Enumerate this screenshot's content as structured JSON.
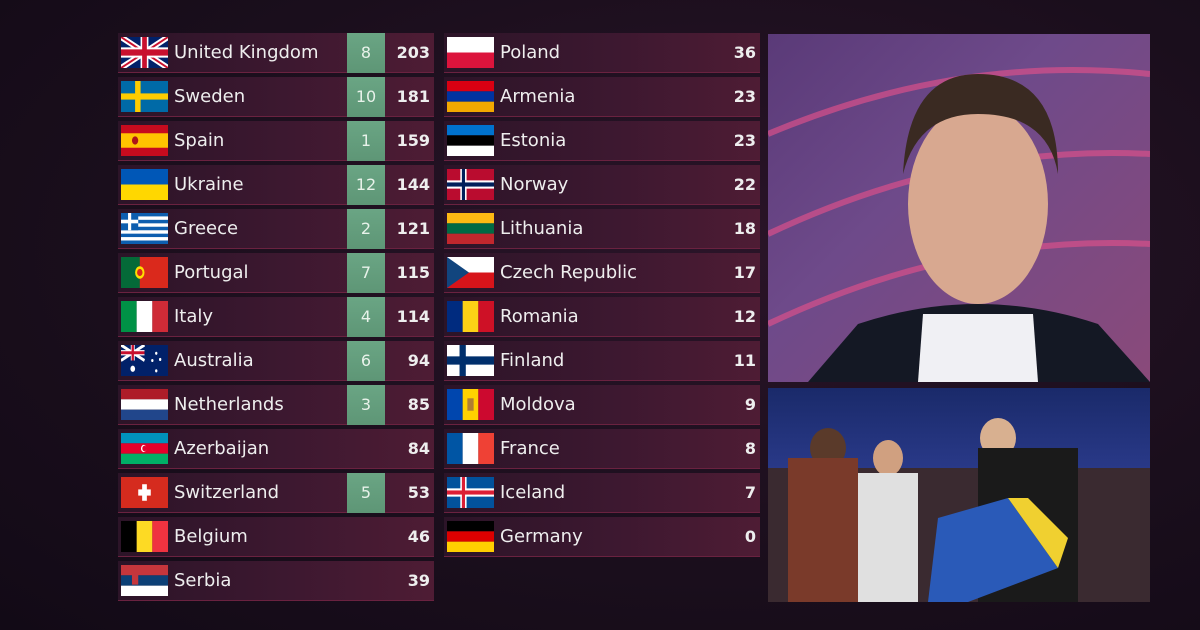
{
  "scoreboard": {
    "left": [
      {
        "country": "United Kingdom",
        "flag": "gb",
        "points": "8",
        "total": "203"
      },
      {
        "country": "Sweden",
        "flag": "se",
        "points": "10",
        "total": "181"
      },
      {
        "country": "Spain",
        "flag": "es",
        "points": "1",
        "total": "159"
      },
      {
        "country": "Ukraine",
        "flag": "ua",
        "points": "12",
        "total": "144"
      },
      {
        "country": "Greece",
        "flag": "gr",
        "points": "2",
        "total": "121"
      },
      {
        "country": "Portugal",
        "flag": "pt",
        "points": "7",
        "total": "115"
      },
      {
        "country": "Italy",
        "flag": "it",
        "points": "4",
        "total": "114"
      },
      {
        "country": "Australia",
        "flag": "au",
        "points": "6",
        "total": "94"
      },
      {
        "country": "Netherlands",
        "flag": "nl",
        "points": "3",
        "total": "85"
      },
      {
        "country": "Azerbaijan",
        "flag": "az",
        "points": null,
        "total": "84"
      },
      {
        "country": "Switzerland",
        "flag": "ch",
        "points": "5",
        "total": "53"
      },
      {
        "country": "Belgium",
        "flag": "be",
        "points": null,
        "total": "46"
      },
      {
        "country": "Serbia",
        "flag": "rs",
        "points": null,
        "total": "39"
      }
    ],
    "right": [
      {
        "country": "Poland",
        "flag": "pl",
        "total": "36"
      },
      {
        "country": "Armenia",
        "flag": "am",
        "total": "23"
      },
      {
        "country": "Estonia",
        "flag": "ee",
        "total": "23"
      },
      {
        "country": "Norway",
        "flag": "no",
        "total": "22"
      },
      {
        "country": "Lithuania",
        "flag": "lt",
        "total": "18"
      },
      {
        "country": "Czech Republic",
        "flag": "cz",
        "total": "17"
      },
      {
        "country": "Romania",
        "flag": "ro",
        "total": "12"
      },
      {
        "country": "Finland",
        "flag": "fi",
        "total": "11"
      },
      {
        "country": "Moldova",
        "flag": "md",
        "total": "9"
      },
      {
        "country": "France",
        "flag": "fr",
        "total": "8"
      },
      {
        "country": "Iceland",
        "flag": "is",
        "total": "7"
      },
      {
        "country": "Germany",
        "flag": "de",
        "total": "0"
      }
    ]
  },
  "colors": {
    "points_badge": "#6aa584",
    "row": "#3d1830",
    "background": "#1a0e1c"
  }
}
